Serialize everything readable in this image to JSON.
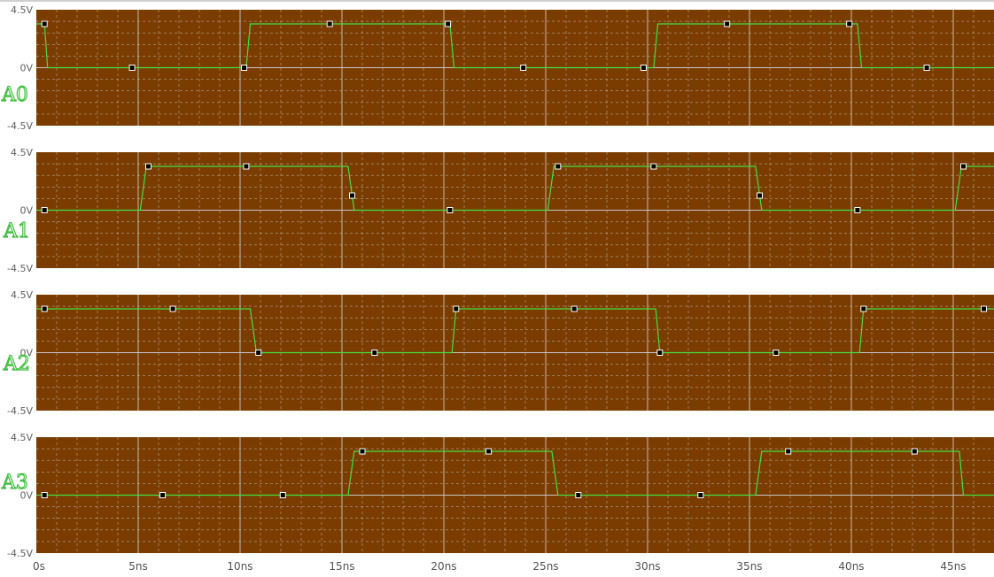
{
  "colors": {
    "plot_background": "#7b3c00",
    "trace": "#44e044",
    "grid": "#c8c8c8",
    "marker_fill": "#000000",
    "marker_stroke": "#ffffff"
  },
  "chart_data": {
    "type": "line",
    "x_unit": "ns",
    "xlim": [
      0,
      47
    ],
    "ylim": [
      -4.5,
      4.5
    ],
    "x_ticks": [
      {
        "value": 0,
        "label": "0s"
      },
      {
        "value": 5,
        "label": "5ns"
      },
      {
        "value": 10,
        "label": "10ns"
      },
      {
        "value": 15,
        "label": "15ns"
      },
      {
        "value": 20,
        "label": "20ns"
      },
      {
        "value": 25,
        "label": "25ns"
      },
      {
        "value": 30,
        "label": "30ns"
      },
      {
        "value": 35,
        "label": "35ns"
      },
      {
        "value": 40,
        "label": "40ns"
      },
      {
        "value": 45,
        "label": "45ns"
      }
    ],
    "y_ticks": [
      {
        "value": 4.5,
        "label": "4.5V"
      },
      {
        "value": 0,
        "label": "0V"
      },
      {
        "value": -4.5,
        "label": "-4.5V"
      }
    ],
    "grid": true,
    "series": [
      {
        "name": "A0",
        "x": [
          0,
          0.4,
          0.55,
          10.3,
          10.5,
          20.3,
          20.5,
          30.3,
          30.5,
          40.3,
          40.5,
          47
        ],
        "y": [
          3.4,
          3.4,
          0,
          0,
          3.4,
          3.4,
          0,
          0,
          3.4,
          3.4,
          0,
          0
        ],
        "markers_x": [
          0.4,
          4.7,
          10.2,
          14.4,
          20.2,
          23.9,
          29.8,
          33.9,
          39.9,
          43.7
        ]
      },
      {
        "name": "A1",
        "x": [
          0,
          5.1,
          5.4,
          15.3,
          15.6,
          25.1,
          25.4,
          35.3,
          35.6,
          45.1,
          45.4,
          47
        ],
        "y": [
          0,
          0,
          3.4,
          3.4,
          0,
          0,
          3.4,
          3.4,
          0,
          0,
          3.4,
          3.4
        ],
        "markers_x": [
          0.4,
          5.5,
          10.3,
          15.5,
          20.3,
          25.6,
          30.3,
          35.5,
          40.3,
          45.5
        ]
      },
      {
        "name": "A2",
        "x": [
          0,
          10.5,
          10.8,
          20.4,
          20.6,
          30.4,
          30.6,
          40.4,
          40.6,
          47
        ],
        "y": [
          3.4,
          3.4,
          0,
          0,
          3.4,
          3.4,
          0,
          0,
          3.4,
          3.4
        ],
        "markers_x": [
          0.4,
          6.7,
          10.9,
          16.6,
          20.6,
          26.4,
          30.6,
          36.3,
          40.6,
          46.5
        ]
      },
      {
        "name": "A3",
        "x": [
          0,
          15.3,
          15.6,
          25.3,
          25.6,
          35.3,
          35.6,
          45.3,
          45.5,
          47
        ],
        "y": [
          0,
          0,
          3.4,
          3.4,
          0,
          0,
          3.4,
          3.4,
          0,
          0
        ],
        "markers_x": [
          0.4,
          6.2,
          12.1,
          16.0,
          22.2,
          26.6,
          32.6,
          36.9,
          43.1
        ]
      }
    ]
  }
}
